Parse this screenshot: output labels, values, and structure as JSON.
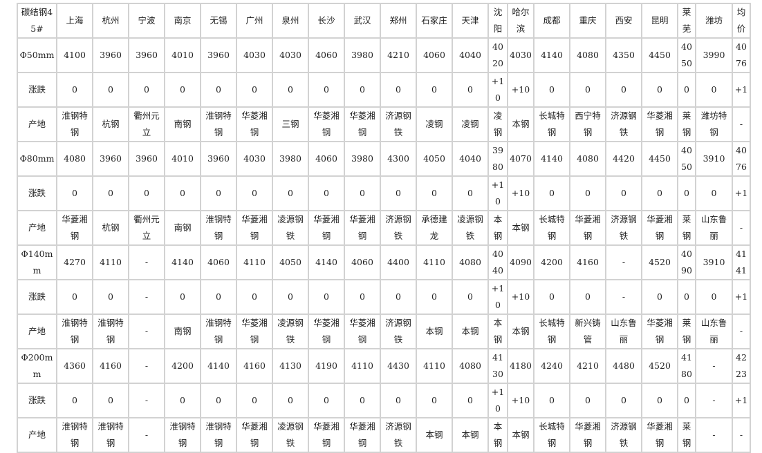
{
  "table": {
    "header": [
      "碳结钢45#",
      "上海",
      "杭州",
      "宁波",
      "南京",
      "无锡",
      "广州",
      "泉州",
      "长沙",
      "武汉",
      "郑州",
      "石家庄",
      "天津",
      "沈阳",
      "哈尔滨",
      "成都",
      "重庆",
      "西安",
      "昆明",
      "莱芜",
      "潍坊",
      "均价"
    ],
    "rows": [
      {
        "type": "price",
        "cells": [
          "Φ50mm",
          "4100",
          "3960",
          "3960",
          "4010",
          "3960",
          "4030",
          "4030",
          "4060",
          "3980",
          "4210",
          "4060",
          "4040",
          "4020",
          "4030",
          "4140",
          "4080",
          "4350",
          "4450",
          "4050",
          "3990",
          "4076"
        ]
      },
      {
        "type": "chg",
        "cells": [
          "涨跌",
          "0",
          "0",
          "0",
          "0",
          "0",
          "0",
          "0",
          "0",
          "0",
          "0",
          "0",
          "0",
          "+10",
          "+10",
          "0",
          "0",
          "0",
          "0",
          "0",
          "0",
          "+1"
        ]
      },
      {
        "type": "origin",
        "cells": [
          "产地",
          "淮钢特钢",
          "杭钢",
          "衢州元立",
          "南钢",
          "淮钢特钢",
          "华菱湘钢",
          "三钢",
          "华菱湘钢",
          "华菱湘钢",
          "济源钢铁",
          "凌钢",
          "凌钢",
          "凌钢",
          "本钢",
          "长城特钢",
          "西宁特钢",
          "济源钢铁",
          "华菱湘钢",
          "莱钢",
          "潍坊特钢",
          "-"
        ]
      },
      {
        "type": "price",
        "cells": [
          "Φ80mm",
          "4080",
          "3960",
          "3960",
          "4010",
          "3960",
          "4030",
          "3980",
          "4060",
          "3980",
          "4300",
          "4050",
          "4040",
          "3980",
          "4070",
          "4140",
          "4080",
          "4420",
          "4450",
          "4050",
          "3910",
          "4076"
        ]
      },
      {
        "type": "chg",
        "cells": [
          "涨跌",
          "0",
          "0",
          "0",
          "0",
          "0",
          "0",
          "0",
          "0",
          "0",
          "0",
          "0",
          "0",
          "+10",
          "+10",
          "0",
          "0",
          "0",
          "0",
          "0",
          "0",
          "+1"
        ]
      },
      {
        "type": "origin",
        "cells": [
          "产地",
          "华菱湘钢",
          "杭钢",
          "衢州元立",
          "南钢",
          "淮钢特钢",
          "华菱湘钢",
          "凌源钢铁",
          "华菱湘钢",
          "华菱湘钢",
          "济源钢铁",
          "承德建龙",
          "凌源钢铁",
          "本钢",
          "本钢",
          "长城特钢",
          "华菱湘钢",
          "济源钢铁",
          "华菱湘钢",
          "莱钢",
          "山东鲁丽",
          "-"
        ]
      },
      {
        "type": "price",
        "cells": [
          "Φ140mm",
          "4270",
          "4110",
          "-",
          "4140",
          "4060",
          "4110",
          "4050",
          "4140",
          "4060",
          "4400",
          "4110",
          "4080",
          "4040",
          "4090",
          "4200",
          "4160",
          "-",
          "4520",
          "4090",
          "3910",
          "4141"
        ]
      },
      {
        "type": "chg",
        "cells": [
          "涨跌",
          "0",
          "0",
          "-",
          "0",
          "0",
          "0",
          "0",
          "0",
          "0",
          "0",
          "0",
          "0",
          "+10",
          "+10",
          "0",
          "0",
          "-",
          "0",
          "0",
          "0",
          "+1"
        ]
      },
      {
        "type": "origin",
        "cells": [
          "产地",
          "淮钢特钢",
          "淮钢特钢",
          "-",
          "南钢",
          "淮钢特钢",
          "华菱湘钢",
          "凌源钢铁",
          "华菱湘钢",
          "华菱湘钢",
          "济源钢铁",
          "本钢",
          "本钢",
          "本钢",
          "本钢",
          "长城特钢",
          "新兴铸管",
          "山东鲁丽",
          "华菱湘钢",
          "莱钢",
          "山东鲁丽",
          "-"
        ]
      },
      {
        "type": "price",
        "cells": [
          "Φ200mm",
          "4360",
          "4160",
          "-",
          "4200",
          "4140",
          "4160",
          "4130",
          "4190",
          "4110",
          "4430",
          "4110",
          "4080",
          "4130",
          "4180",
          "4240",
          "4210",
          "4480",
          "4520",
          "4180",
          "-",
          "4223"
        ]
      },
      {
        "type": "chg",
        "cells": [
          "涨跌",
          "0",
          "0",
          "-",
          "0",
          "0",
          "0",
          "0",
          "0",
          "0",
          "0",
          "0",
          "0",
          "+10",
          "+10",
          "0",
          "0",
          "0",
          "0",
          "0",
          "-",
          "+1"
        ]
      },
      {
        "type": "origin",
        "cells": [
          "产地",
          "淮钢特钢",
          "淮钢特钢",
          "-",
          "淮钢特钢",
          "淮钢特钢",
          "华菱湘钢",
          "凌源钢铁",
          "华菱湘钢",
          "华菱湘钢",
          "济源钢铁",
          "本钢",
          "本钢",
          "本钢",
          "本钢",
          "长城特钢",
          "华菱湘钢",
          "济源钢铁",
          "华菱湘钢",
          "莱钢",
          "-",
          "-"
        ]
      }
    ]
  }
}
